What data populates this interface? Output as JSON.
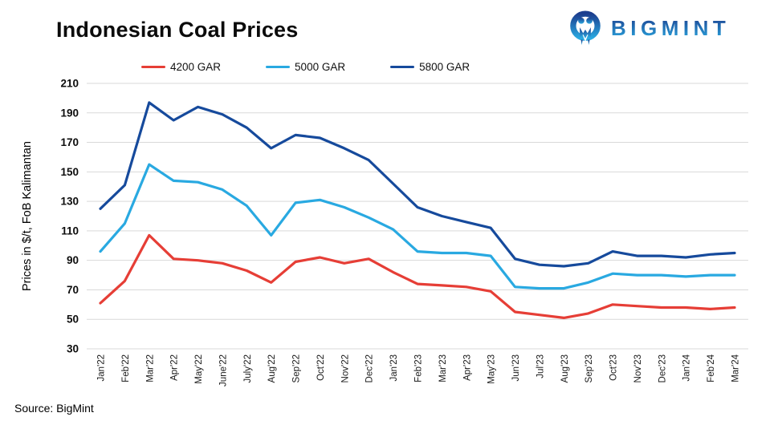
{
  "page": {
    "title": "Indonesian Coal Prices",
    "source": "Source: BigMint",
    "brand": {
      "name": "BIGMINT",
      "color_dark": "#1c3e8f",
      "color_light": "#2aa9e0"
    }
  },
  "chart_data": {
    "type": "line",
    "title": "Indonesian Coal Prices",
    "xlabel": "",
    "ylabel": "Prices in $/t, FoB Kalimantan",
    "ylim": [
      30,
      210
    ],
    "yticks": [
      210,
      190,
      170,
      150,
      130,
      110,
      90,
      70,
      50,
      30
    ],
    "grid": "horizontal",
    "gridline_color": "#d9d9d9",
    "legend_position": "top",
    "categories": [
      "Jan'22",
      "Feb'22",
      "Mar'22",
      "Apr'22",
      "May'22",
      "June'22",
      "July'22",
      "Aug'22",
      "Sep'22",
      "Oct'22",
      "Nov'22",
      "Dec'22",
      "Jan'23",
      "Feb'23",
      "Mar'23",
      "Apr'23",
      "May'23",
      "Jun'23",
      "Jul'23",
      "Aug'23",
      "Sep'23",
      "Oct'23",
      "Nov'23",
      "Dec'23",
      "Jan'24",
      "Feb'24",
      "Mar'24"
    ],
    "series": [
      {
        "name": "4200 GAR",
        "color": "#e63e36",
        "values": [
          61,
          76,
          107,
          91,
          90,
          88,
          83,
          75,
          89,
          92,
          88,
          91,
          82,
          74,
          73,
          72,
          69,
          55,
          53,
          51,
          54,
          60,
          59,
          58,
          58,
          57,
          58
        ]
      },
      {
        "name": "5000 GAR",
        "color": "#29a9e1",
        "values": [
          96,
          115,
          155,
          144,
          143,
          138,
          127,
          107,
          129,
          131,
          126,
          119,
          111,
          96,
          95,
          95,
          93,
          72,
          71,
          71,
          75,
          81,
          80,
          80,
          79,
          80,
          80
        ]
      },
      {
        "name": "5800 GAR",
        "color": "#164a9c",
        "values": [
          125,
          141,
          197,
          185,
          194,
          189,
          180,
          166,
          175,
          173,
          166,
          158,
          142,
          126,
          120,
          116,
          112,
          91,
          87,
          86,
          88,
          96,
          93,
          93,
          92,
          94,
          95
        ]
      }
    ]
  }
}
